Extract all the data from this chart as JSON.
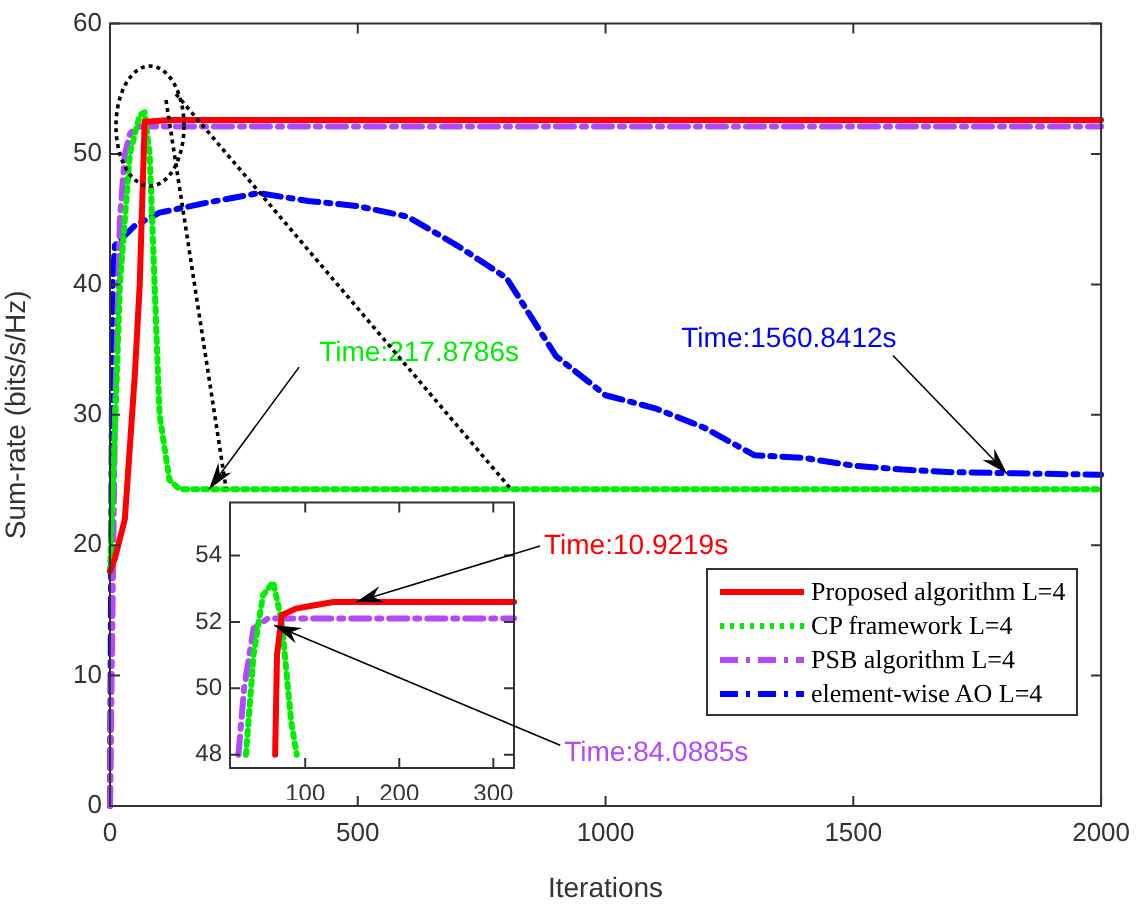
{
  "chart_data": [
    {
      "type": "line",
      "xlabel": "Iterations",
      "ylabel": "Sum-rate (bits/s/Hz)",
      "xlim": [
        0,
        2000
      ],
      "xticks": [
        0,
        500,
        1000,
        1500,
        2000
      ],
      "ylim": [
        0,
        60
      ],
      "yticks": [
        0,
        10,
        20,
        30,
        40,
        50,
        60
      ],
      "grid": false,
      "legend": "bottom right",
      "marker": "none",
      "series": [
        {
          "name": "Proposed algorithm L=4",
          "color": "#ff0000",
          "line_style": "solid",
          "x": [
            0,
            10,
            30,
            50,
            60,
            70,
            80,
            120,
            2000
          ],
          "values": [
            18,
            19,
            22,
            33,
            40,
            52.5,
            52.5,
            52.6,
            52.6
          ]
        },
        {
          "name": "CP framework L=4",
          "color": "#00ee00",
          "line_style": "dotted",
          "x": [
            0,
            20,
            40,
            60,
            70,
            80,
            90,
            100,
            120,
            140,
            2000
          ],
          "values": [
            18,
            40,
            50,
            53,
            53.2,
            50,
            40,
            30,
            25,
            24.3,
            24.3
          ]
        },
        {
          "name": "PSB algorithm L=4",
          "color": "#b348ff",
          "line_style": "dashed",
          "x": [
            0,
            10,
            20,
            30,
            40,
            50,
            60,
            2000
          ],
          "values": [
            0,
            30,
            45,
            50,
            51.5,
            52,
            52.1,
            52.1
          ]
        },
        {
          "name": "element-wise AO L=4",
          "color": "#0000ff",
          "line_style": "dashed",
          "x": [
            0,
            5,
            10,
            50,
            100,
            200,
            300,
            400,
            500,
            600,
            700,
            800,
            900,
            1000,
            1100,
            1200,
            1300,
            1400,
            1500,
            1600,
            1700,
            2000
          ],
          "values": [
            0,
            40,
            43,
            44.5,
            45.5,
            46.3,
            47,
            46.4,
            46,
            45.2,
            43,
            40.5,
            34.5,
            31.5,
            30.5,
            29,
            26.9,
            26.7,
            26.1,
            25.8,
            25.6,
            25.4
          ]
        }
      ],
      "annotations": [
        {
          "text": "Time:217.8786s",
          "x": 200,
          "y": 24.3
        },
        {
          "text": "Time:1560.8412s",
          "x": 1810,
          "y": 25.5
        }
      ]
    },
    {
      "type": "line",
      "xlim": [
        20,
        322
      ],
      "xticks": [
        100,
        200,
        300
      ],
      "ylim": [
        47.6,
        55.6
      ],
      "yticks": [
        48,
        50,
        52,
        54
      ],
      "grid": false,
      "marker": "none",
      "series": [
        {
          "color": "#ff0000",
          "line_style": "solid",
          "x": [
            68,
            70,
            75,
            90,
            110,
            130,
            322
          ],
          "values": [
            48,
            51,
            52.2,
            52.4,
            52.5,
            52.6,
            52.6
          ]
        },
        {
          "color": "#00ee00",
          "line_style": "dotted",
          "x": [
            37,
            45,
            55,
            66,
            75,
            85,
            91
          ],
          "values": [
            48,
            51,
            52.8,
            53.2,
            52,
            49,
            48
          ]
        },
        {
          "color": "#b348ff",
          "line_style": "dashed",
          "x": [
            29,
            35,
            45,
            60,
            322
          ],
          "values": [
            48,
            50,
            51.8,
            52.1,
            52.1
          ]
        }
      ],
      "annotations": [
        {
          "text": "Time:10.9219s",
          "x": 154,
          "y": 52.6
        },
        {
          "text": "Time:84.0885s",
          "x": 67,
          "y": 51.9
        }
      ]
    }
  ]
}
